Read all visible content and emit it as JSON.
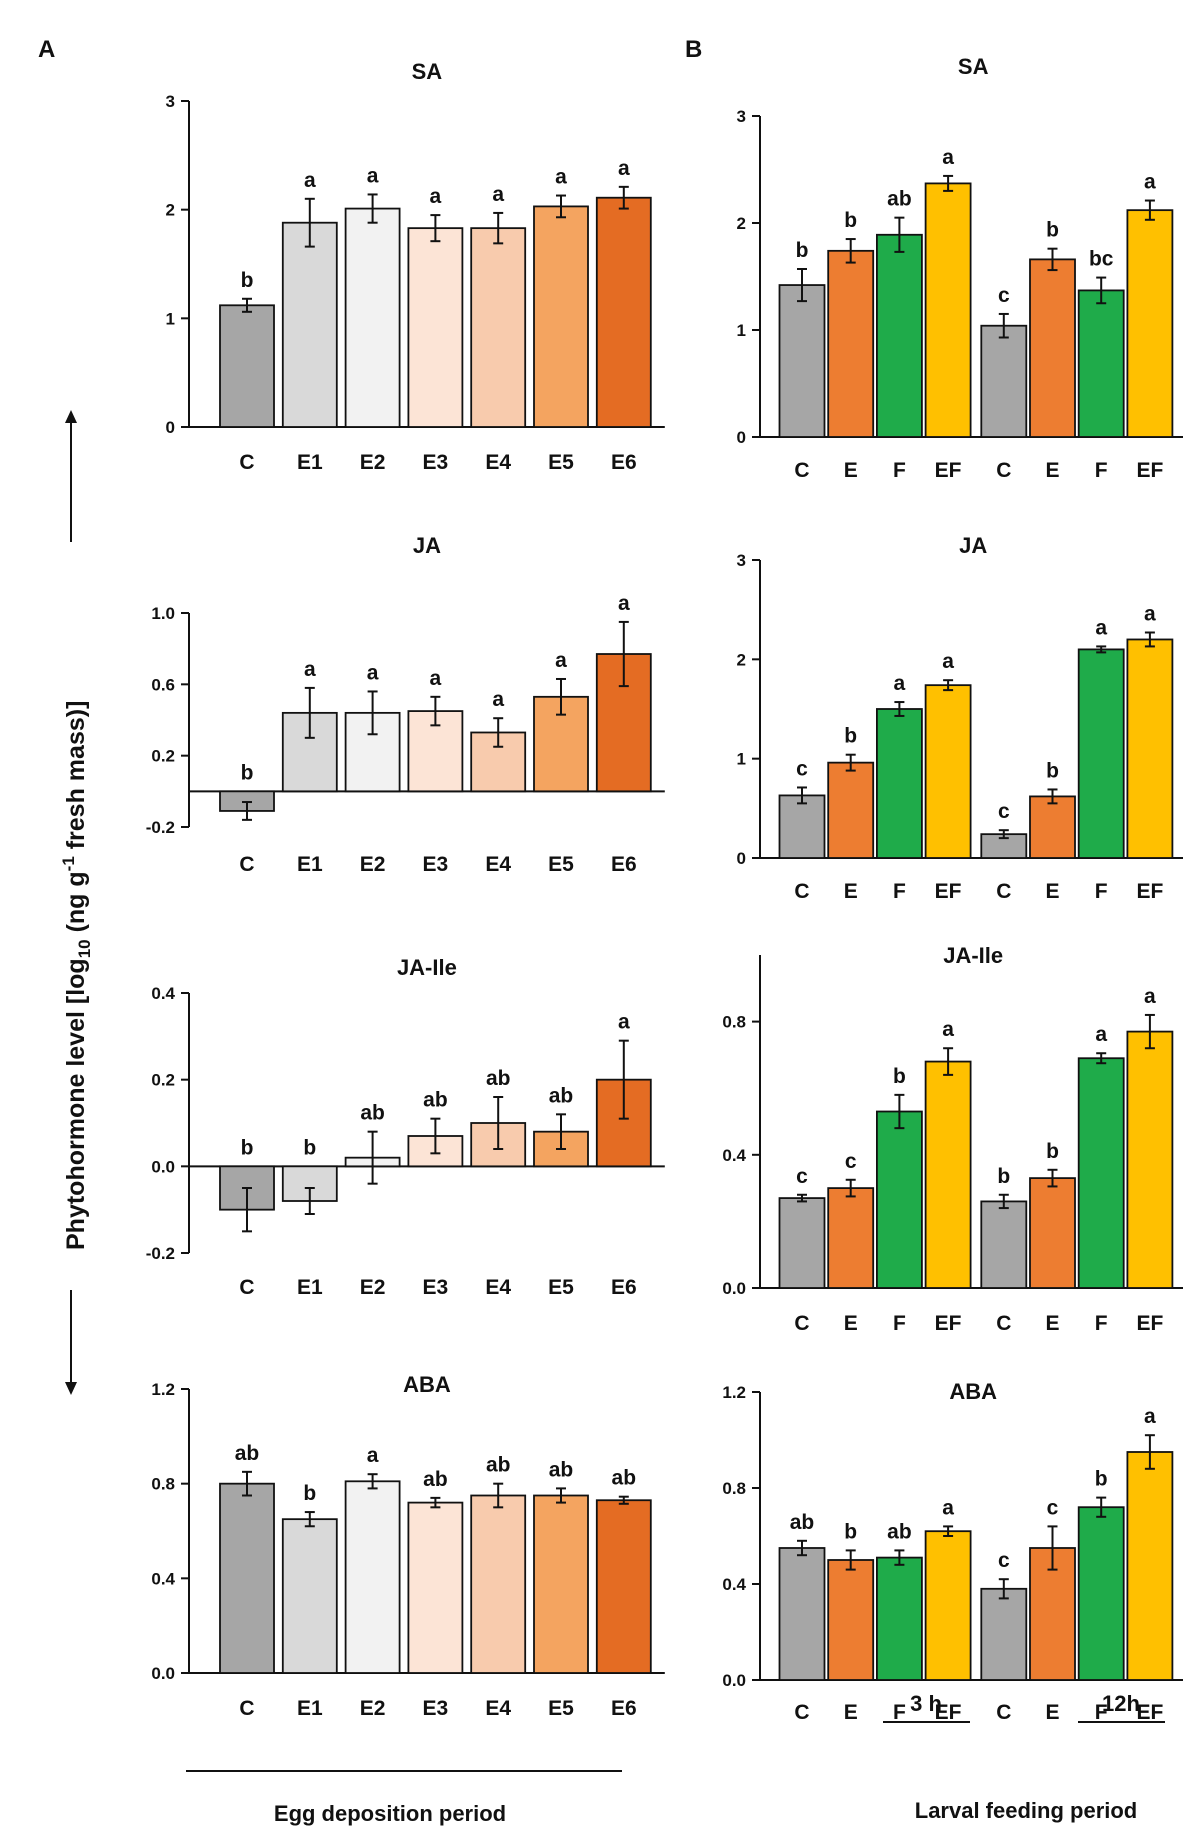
{
  "figure": {
    "panel_labels": [
      "A",
      "B"
    ],
    "shared_ylabel_main": "Phytohormone level [log",
    "shared_ylabel_sub": "10",
    "shared_ylabel_mid": " (ng g",
    "shared_ylabel_sup": "-1",
    "shared_ylabel_end": " fresh mass)]",
    "footer_left": "Egg deposition period",
    "footer_right": "Larval feeding period",
    "group_labels": [
      "3 h",
      "12h"
    ]
  },
  "colors": {
    "C": "#a6a6a6",
    "E1": "#d9d9d9",
    "E2": "#f2f2f2",
    "E3": "#fce4d6",
    "E4": "#f8cbad",
    "E5": "#f4a460",
    "E6": "#e46c23",
    "E": "#ed7d31",
    "F": "#1fab4a",
    "EF": "#ffc000"
  },
  "chart_data": [
    {
      "id": "A-SA",
      "type": "bar",
      "title": "SA",
      "categories": [
        "C",
        "E1",
        "E2",
        "E3",
        "E4",
        "E5",
        "E6"
      ],
      "values": [
        1.12,
        1.88,
        2.01,
        1.83,
        1.83,
        2.03,
        2.11
      ],
      "errors": [
        0.06,
        0.22,
        0.13,
        0.12,
        0.14,
        0.1,
        0.1
      ],
      "letters": [
        "b",
        "a",
        "a",
        "a",
        "a",
        "a",
        "a"
      ],
      "ylim": [
        0,
        3
      ],
      "yticks": [
        0,
        1,
        2,
        3
      ],
      "yticklabels": [
        "0",
        "1",
        "2",
        "3"
      ]
    },
    {
      "id": "A-JA",
      "type": "bar",
      "title": "JA",
      "categories": [
        "C",
        "E1",
        "E2",
        "E3",
        "E4",
        "E5",
        "E6"
      ],
      "values": [
        -0.11,
        0.44,
        0.44,
        0.45,
        0.33,
        0.53,
        0.77
      ],
      "errors": [
        0.05,
        0.14,
        0.12,
        0.08,
        0.08,
        0.1,
        0.18
      ],
      "letters": [
        "b",
        "a",
        "a",
        "a",
        "a",
        "a",
        "a"
      ],
      "ylim": [
        -0.2,
        1.0
      ],
      "yticks": [
        -0.2,
        0.2,
        0.6,
        1.0
      ],
      "yticklabels": [
        "-0.2",
        "0.2",
        "0.6",
        "1.0"
      ]
    },
    {
      "id": "A-JAIle",
      "type": "bar",
      "title": "JA-Ile",
      "categories": [
        "C",
        "E1",
        "E2",
        "E3",
        "E4",
        "E5",
        "E6"
      ],
      "values": [
        -0.1,
        -0.08,
        0.02,
        0.07,
        0.1,
        0.08,
        0.2
      ],
      "errors": [
        0.05,
        0.03,
        0.06,
        0.04,
        0.06,
        0.04,
        0.09
      ],
      "letters": [
        "b",
        "b",
        "ab",
        "ab",
        "ab",
        "ab",
        "a"
      ],
      "ylim": [
        -0.2,
        0.4
      ],
      "yticks": [
        -0.2,
        0.0,
        0.2,
        0.4
      ],
      "yticklabels": [
        "-0.2",
        "0.0",
        "0.2",
        "0.4"
      ]
    },
    {
      "id": "A-ABA",
      "type": "bar",
      "title": "ABA",
      "categories": [
        "C",
        "E1",
        "E2",
        "E3",
        "E4",
        "E5",
        "E6"
      ],
      "values": [
        0.8,
        0.65,
        0.81,
        0.72,
        0.75,
        0.75,
        0.73
      ],
      "errors": [
        0.05,
        0.03,
        0.03,
        0.02,
        0.05,
        0.03,
        0.015
      ],
      "letters": [
        "ab",
        "b",
        "a",
        "ab",
        "ab",
        "ab",
        "ab"
      ],
      "ylim": [
        0,
        1.2
      ],
      "yticks": [
        0.0,
        0.4,
        0.8,
        1.2
      ],
      "yticklabels": [
        "0.0",
        "0.4",
        "0.8",
        "1.2"
      ]
    },
    {
      "id": "B-SA",
      "type": "bar",
      "title": "SA",
      "categories": [
        "C",
        "E",
        "F",
        "EF",
        "C",
        "E",
        "F",
        "EF"
      ],
      "values": [
        1.42,
        1.74,
        1.89,
        2.37,
        1.04,
        1.66,
        1.37,
        2.12
      ],
      "errors": [
        0.15,
        0.11,
        0.16,
        0.07,
        0.11,
        0.1,
        0.12,
        0.09
      ],
      "letters": [
        "b",
        "b",
        "ab",
        "a",
        "c",
        "b",
        "bc",
        "a"
      ],
      "ylim": [
        0,
        3
      ],
      "yticks": [
        0,
        1,
        2,
        3
      ],
      "yticklabels": [
        "0",
        "1",
        "2",
        "3"
      ]
    },
    {
      "id": "B-JA",
      "type": "bar",
      "title": "JA",
      "categories": [
        "C",
        "E",
        "F",
        "EF",
        "C",
        "E",
        "F",
        "EF"
      ],
      "values": [
        0.63,
        0.96,
        1.5,
        1.74,
        0.24,
        0.62,
        2.1,
        2.2
      ],
      "errors": [
        0.08,
        0.08,
        0.07,
        0.05,
        0.04,
        0.07,
        0.03,
        0.07
      ],
      "letters": [
        "c",
        "b",
        "a",
        "a",
        "c",
        "b",
        "a",
        "a"
      ],
      "ylim": [
        0,
        3
      ],
      "yticks": [
        0,
        1,
        2,
        3
      ],
      "yticklabels": [
        "0",
        "1",
        "2",
        "3"
      ]
    },
    {
      "id": "B-JAIle",
      "type": "bar",
      "title": "JA-Ile",
      "categories": [
        "C",
        "E",
        "F",
        "EF",
        "C",
        "E",
        "F",
        "EF"
      ],
      "values": [
        0.27,
        0.3,
        0.53,
        0.68,
        0.26,
        0.33,
        0.69,
        0.77
      ],
      "errors": [
        0.01,
        0.025,
        0.05,
        0.04,
        0.02,
        0.025,
        0.015,
        0.05
      ],
      "letters": [
        "c",
        "c",
        "b",
        "a",
        "b",
        "b",
        "a",
        "a"
      ],
      "ylim": [
        0,
        1.0
      ],
      "yticks": [
        0.0,
        0.4,
        0.8
      ],
      "yticklabels": [
        "0.0",
        "0.4",
        "0.8"
      ]
    },
    {
      "id": "B-ABA",
      "type": "bar",
      "title": "ABA",
      "categories": [
        "C",
        "E",
        "F",
        "EF",
        "C",
        "E",
        "F",
        "EF"
      ],
      "values": [
        0.55,
        0.5,
        0.51,
        0.62,
        0.38,
        0.55,
        0.72,
        0.95
      ],
      "errors": [
        0.03,
        0.04,
        0.03,
        0.02,
        0.04,
        0.09,
        0.04,
        0.07
      ],
      "letters": [
        "ab",
        "b",
        "ab",
        "a",
        "c",
        "c",
        "b",
        "a"
      ],
      "ylim": [
        0,
        1.2
      ],
      "yticks": [
        0.0,
        0.4,
        0.8,
        1.2
      ],
      "yticklabels": [
        "0.0",
        "0.4",
        "0.8",
        "1.2"
      ]
    }
  ]
}
